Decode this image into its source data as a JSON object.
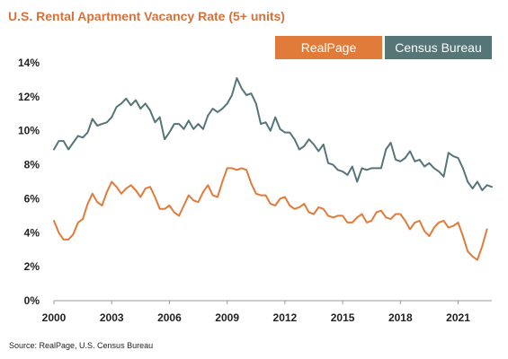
{
  "chart_data": {
    "type": "line",
    "title": "U.S. Rental Apartment Vacancy Rate (5+ units)",
    "source": "Source: RealPage, U.S. Census Bureau",
    "xlabel": "",
    "ylabel": "",
    "xlim": [
      2000,
      2022.75
    ],
    "ylim": [
      0,
      14
    ],
    "x_ticks": [
      2000,
      2003,
      2006,
      2009,
      2012,
      2015,
      2018,
      2021
    ],
    "x_tick_labels": [
      "2000",
      "2003",
      "2006",
      "2009",
      "2012",
      "2015",
      "2018",
      "2021"
    ],
    "y_ticks": [
      0,
      2,
      4,
      6,
      8,
      10,
      12,
      14
    ],
    "y_tick_labels": [
      "0%",
      "2%",
      "4%",
      "6%",
      "8%",
      "10%",
      "12%",
      "14%"
    ],
    "grid": false,
    "legend_position": "top-right",
    "series": [
      {
        "name": "RealPage",
        "color": "#e07b39",
        "x": [
          2000,
          2000.25,
          2000.5,
          2000.75,
          2001,
          2001.25,
          2001.5,
          2001.75,
          2002,
          2002.25,
          2002.5,
          2002.75,
          2003,
          2003.25,
          2003.5,
          2003.75,
          2004,
          2004.25,
          2004.5,
          2004.75,
          2005,
          2005.25,
          2005.5,
          2005.75,
          2006,
          2006.25,
          2006.5,
          2006.75,
          2007,
          2007.25,
          2007.5,
          2007.75,
          2008,
          2008.25,
          2008.5,
          2008.75,
          2009,
          2009.25,
          2009.5,
          2009.75,
          2010,
          2010.25,
          2010.5,
          2010.75,
          2011,
          2011.25,
          2011.5,
          2011.75,
          2012,
          2012.25,
          2012.5,
          2012.75,
          2013,
          2013.25,
          2013.5,
          2013.75,
          2014,
          2014.25,
          2014.5,
          2014.75,
          2015,
          2015.25,
          2015.5,
          2015.75,
          2016,
          2016.25,
          2016.5,
          2016.75,
          2017,
          2017.25,
          2017.5,
          2017.75,
          2018,
          2018.25,
          2018.5,
          2018.75,
          2019,
          2019.25,
          2019.5,
          2019.75,
          2020,
          2020.25,
          2020.5,
          2020.75,
          2021,
          2021.25,
          2021.5,
          2021.75,
          2022,
          2022.25,
          2022.5
        ],
        "y": [
          4.7,
          4.0,
          3.6,
          3.6,
          3.9,
          4.6,
          4.8,
          5.7,
          6.3,
          5.8,
          5.6,
          6.4,
          7.0,
          6.7,
          6.3,
          6.6,
          6.8,
          6.5,
          6.1,
          6.6,
          6.7,
          6.1,
          5.4,
          5.4,
          5.6,
          5.2,
          5.0,
          5.6,
          6.2,
          5.9,
          5.8,
          6.4,
          6.8,
          6.2,
          6.1,
          7.0,
          7.8,
          7.8,
          7.7,
          7.8,
          7.7,
          6.9,
          6.3,
          6.2,
          6.2,
          5.7,
          5.6,
          6.0,
          6.1,
          5.6,
          5.4,
          5.5,
          5.7,
          5.2,
          5.1,
          5.5,
          5.4,
          5.0,
          4.9,
          5.0,
          5.0,
          4.6,
          4.6,
          4.9,
          5.1,
          4.6,
          4.7,
          5.2,
          5.3,
          4.9,
          4.8,
          5.1,
          5.1,
          4.7,
          4.2,
          4.6,
          4.7,
          4.1,
          3.8,
          4.3,
          4.6,
          4.7,
          4.3,
          4.4,
          4.6,
          3.8,
          2.9,
          2.6,
          2.4,
          3.2,
          4.2
        ]
      },
      {
        "name": "Census Bureau",
        "color": "#557577",
        "x": [
          2000,
          2000.25,
          2000.5,
          2000.75,
          2001,
          2001.25,
          2001.5,
          2001.75,
          2002,
          2002.25,
          2002.5,
          2002.75,
          2003,
          2003.25,
          2003.5,
          2003.75,
          2004,
          2004.25,
          2004.5,
          2004.75,
          2005,
          2005.25,
          2005.5,
          2005.75,
          2006,
          2006.25,
          2006.5,
          2006.75,
          2007,
          2007.25,
          2007.5,
          2007.75,
          2008,
          2008.25,
          2008.5,
          2008.75,
          2009,
          2009.25,
          2009.5,
          2009.75,
          2010,
          2010.25,
          2010.5,
          2010.75,
          2011,
          2011.25,
          2011.5,
          2011.75,
          2012,
          2012.25,
          2012.5,
          2012.75,
          2013,
          2013.25,
          2013.5,
          2013.75,
          2014,
          2014.25,
          2014.5,
          2014.75,
          2015,
          2015.25,
          2015.5,
          2015.75,
          2016,
          2016.25,
          2016.5,
          2016.75,
          2017,
          2017.25,
          2017.5,
          2017.75,
          2018,
          2018.25,
          2018.5,
          2018.75,
          2019,
          2019.25,
          2019.5,
          2019.75,
          2020,
          2020.25,
          2020.5,
          2020.75,
          2021,
          2021.25,
          2021.5,
          2021.75,
          2022,
          2022.25,
          2022.5,
          2022.75
        ],
        "y": [
          8.9,
          9.4,
          9.4,
          8.9,
          9.3,
          9.7,
          9.6,
          9.9,
          10.7,
          10.3,
          10.4,
          10.5,
          10.8,
          11.4,
          11.6,
          11.9,
          11.5,
          11.8,
          11.3,
          11.6,
          11.2,
          10.5,
          10.8,
          9.5,
          9.9,
          10.4,
          10.4,
          10.1,
          10.6,
          10.1,
          10.4,
          10.1,
          10.9,
          11.3,
          11.1,
          11.3,
          11.6,
          12.1,
          13.1,
          12.5,
          12.1,
          12.2,
          11.6,
          10.4,
          10.5,
          10.0,
          10.8,
          10.1,
          9.9,
          9.9,
          9.5,
          8.9,
          9.1,
          9.5,
          9.2,
          8.8,
          9.2,
          8.1,
          8.0,
          7.7,
          7.6,
          7.4,
          7.9,
          7.0,
          7.8,
          7.7,
          7.8,
          7.8,
          7.8,
          8.9,
          9.3,
          8.3,
          8.2,
          8.4,
          8.8,
          8.2,
          8.3,
          7.9,
          8.1,
          7.8,
          7.6,
          7.3,
          8.7,
          8.5,
          8.4,
          7.8,
          7.0,
          6.6,
          7.0,
          6.5,
          6.8,
          6.7
        ]
      }
    ]
  }
}
